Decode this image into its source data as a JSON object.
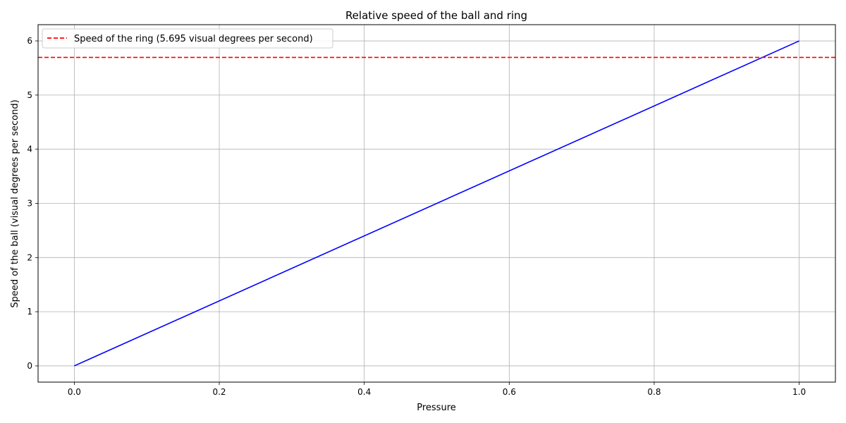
{
  "chart_data": {
    "type": "line",
    "title": "Relative speed of the ball and ring",
    "xlabel": "Pressure",
    "ylabel": "Speed of the ball (visual degrees per second)",
    "xlim": [
      -0.05,
      1.05
    ],
    "ylim": [
      -0.3,
      6.3
    ],
    "x_ticks": [
      0.0,
      0.2,
      0.4,
      0.6,
      0.8,
      1.0
    ],
    "x_tick_labels": [
      "0.0",
      "0.2",
      "0.4",
      "0.6",
      "0.8",
      "1.0"
    ],
    "y_ticks": [
      0,
      1,
      2,
      3,
      4,
      5,
      6
    ],
    "y_tick_labels": [
      "0",
      "1",
      "2",
      "3",
      "4",
      "5",
      "6"
    ],
    "grid": true,
    "legend_position": "top-left",
    "series": [
      {
        "name": "",
        "color": "#0000ff",
        "style": "solid",
        "x": [
          0.0,
          1.0
        ],
        "y": [
          0.0,
          6.0
        ]
      }
    ],
    "reference_lines": [
      {
        "orientation": "horizontal",
        "y": 5.695,
        "name": "Speed of the ring (5.695 visual degrees per second)",
        "color": "#ff0000",
        "style": "dashed"
      }
    ]
  }
}
